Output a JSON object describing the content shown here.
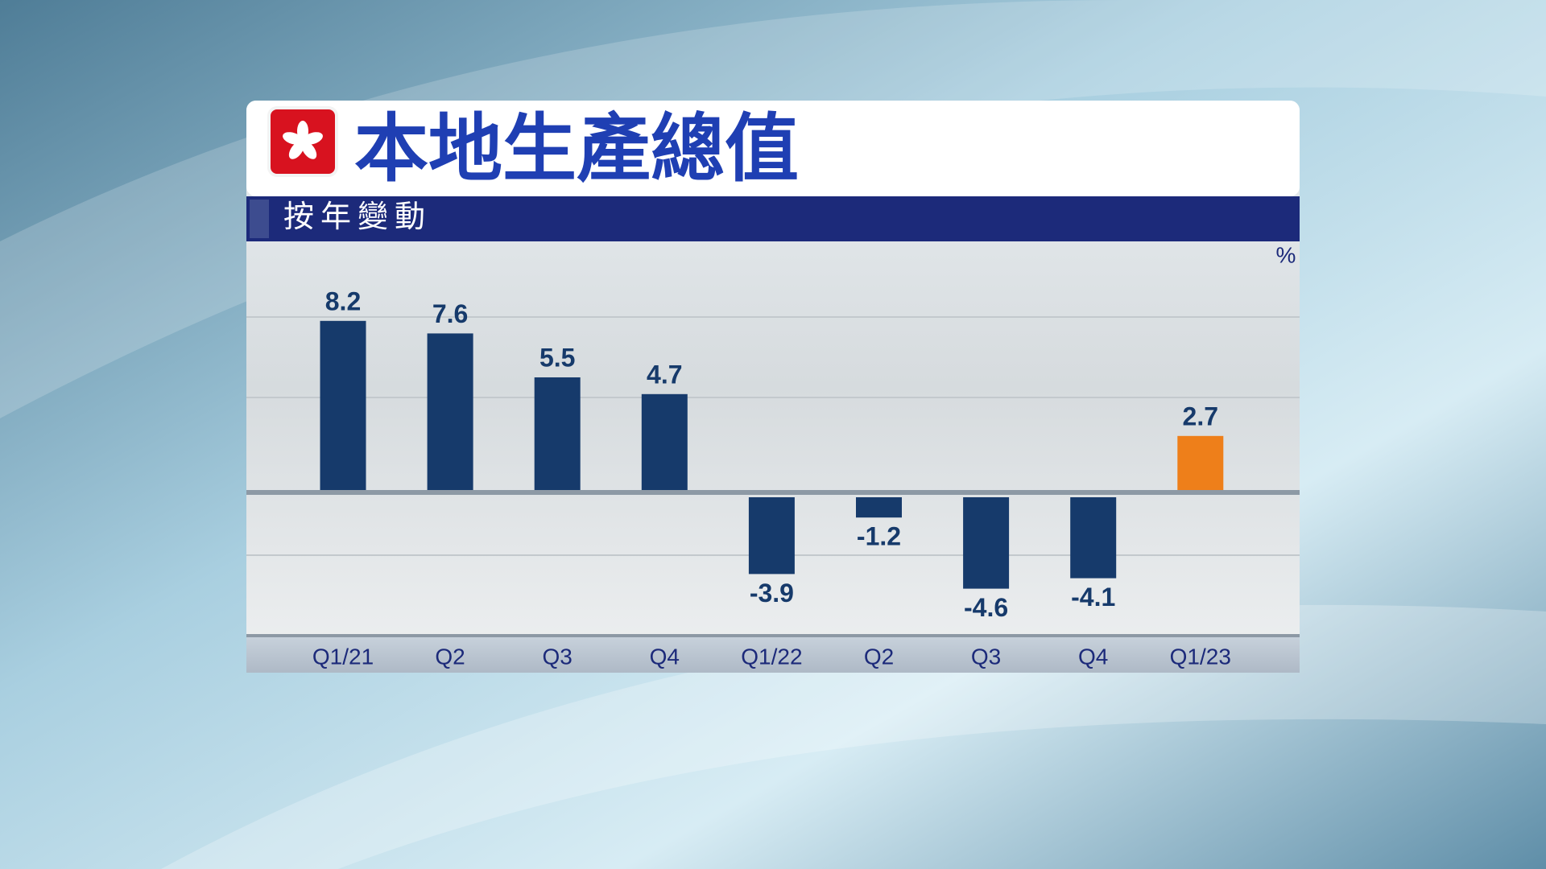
{
  "chart_data": {
    "type": "bar",
    "title": "本地生產總值",
    "subtitle": "按年變動",
    "unit": "%",
    "categories": [
      "Q1/21",
      "Q2",
      "Q3",
      "Q4",
      "Q1/22",
      "Q2",
      "Q3",
      "Q4",
      "Q1/23"
    ],
    "values": [
      8.2,
      7.6,
      5.5,
      4.7,
      -3.9,
      -1.2,
      -4.6,
      -4.1,
      2.7
    ],
    "colors": [
      "#163a6b",
      "#163a6b",
      "#163a6b",
      "#163a6b",
      "#163a6b",
      "#163a6b",
      "#163a6b",
      "#163a6b",
      "#ee7f1a"
    ]
  }
}
